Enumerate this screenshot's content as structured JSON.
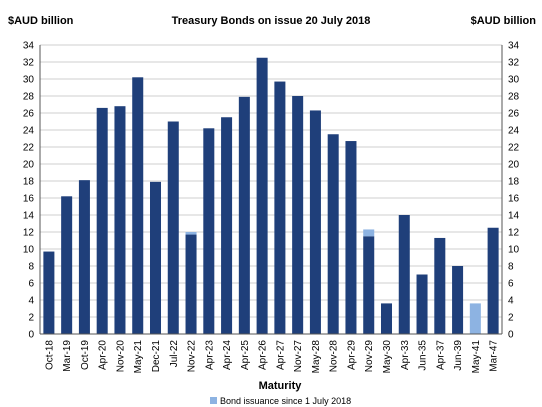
{
  "chart_data": {
    "type": "bar",
    "stacked": true,
    "title": "Treasury Bonds on issue 20 July 2018",
    "y_unit_left": "$AUD billion",
    "y_unit_right": "$AUD billion",
    "xlabel": "Maturity",
    "ylim": [
      0,
      34
    ],
    "yticks": [
      0,
      2,
      4,
      6,
      8,
      10,
      12,
      14,
      16,
      18,
      20,
      22,
      24,
      26,
      28,
      30,
      32,
      34
    ],
    "grid": "horizontal",
    "categories": [
      "Oct-18",
      "Mar-19",
      "Oct-19",
      "Apr-20",
      "Nov-20",
      "May-21",
      "Dec-21",
      "Jul-22",
      "Nov-22",
      "Apr-23",
      "Apr-24",
      "Apr-25",
      "Apr-26",
      "Apr-27",
      "Nov-27",
      "May-28",
      "Nov-28",
      "Apr-29",
      "Nov-29",
      "May-30",
      "Apr-33",
      "Jun-35",
      "Apr-37",
      "Jun-39",
      "May-41",
      "Mar-47"
    ],
    "series": [
      {
        "values": [
          9.7,
          16.2,
          18.1,
          26.6,
          26.8,
          30.2,
          17.9,
          25.0,
          11.7,
          24.2,
          25.5,
          27.9,
          32.5,
          29.7,
          28.0,
          26.3,
          23.5,
          22.7,
          11.5,
          3.6,
          14.0,
          7.0,
          11.3,
          8.0,
          0,
          12.5
        ],
        "color": "#1f3f7a"
      },
      {
        "name": "Bond issuance since 1 July 2018",
        "values": [
          0,
          0,
          0,
          0,
          0,
          0,
          0,
          0,
          0.3,
          0,
          0,
          0,
          0,
          0,
          0,
          0,
          0,
          0,
          0.8,
          0,
          0,
          0,
          0,
          0,
          3.6,
          0
        ],
        "color": "#8db3e2"
      }
    ],
    "legend_position": "bottom"
  }
}
